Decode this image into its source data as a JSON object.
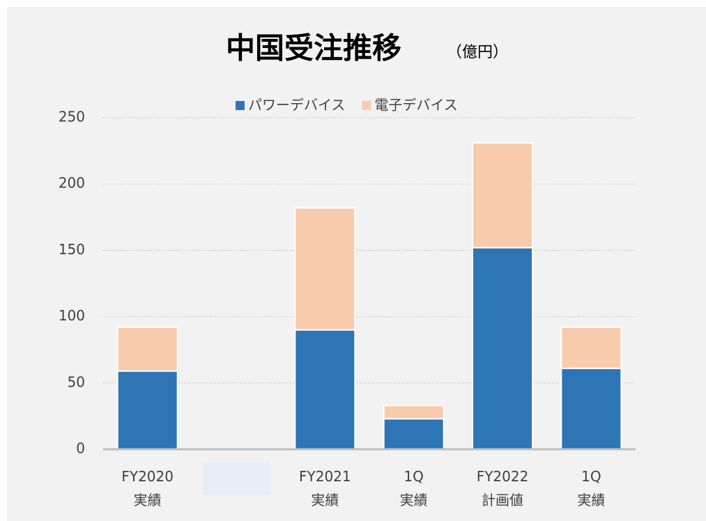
{
  "chart_data": {
    "type": "stacked_bar",
    "title": "中国受注推移",
    "subtitle": "（億円）",
    "categories": [
      "FY2020\n実績",
      null,
      "FY2021\n実績",
      "1Q\n実績",
      "FY2022\n計画値",
      "1Q\n実績"
    ],
    "series": [
      {
        "name": "パワーデバイス",
        "color": "#2e75b6",
        "values": [
          59,
          null,
          90,
          23,
          152,
          61
        ]
      },
      {
        "name": "電子デバイス",
        "color": "#f8cbad",
        "values": [
          33,
          null,
          92,
          10,
          79,
          31
        ]
      }
    ],
    "ylim": [
      0,
      250
    ],
    "yticks": [
      0,
      50,
      100,
      150,
      200,
      250
    ],
    "grid": true,
    "legend": "top"
  }
}
